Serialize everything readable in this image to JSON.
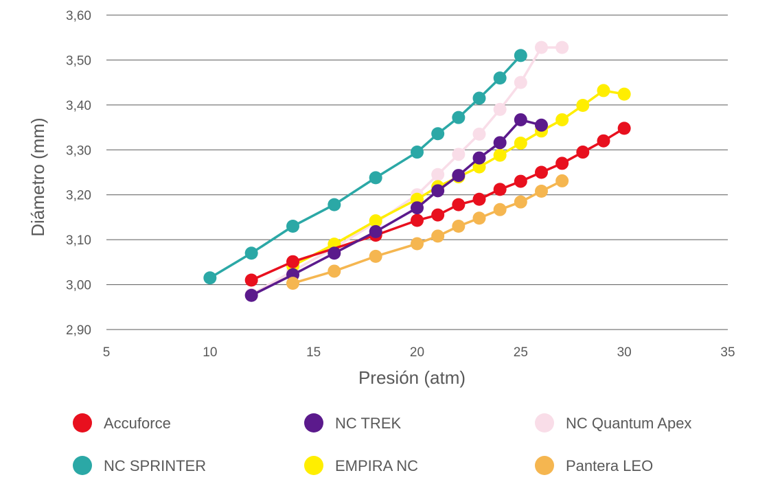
{
  "chart_data": {
    "type": "scatter",
    "mode": "lines+markers",
    "xlabel": "Presión (atm)",
    "ylabel": "Diámetro (mm)",
    "xlim": [
      5,
      35
    ],
    "ylim": [
      2.9,
      3.6
    ],
    "x_ticks": [
      "5",
      "10",
      "15",
      "20",
      "25",
      "30",
      "35"
    ],
    "y_ticks": [
      "2,90",
      "3,00",
      "3,10",
      "3,20",
      "3,30",
      "3,40",
      "3,50",
      "3,60"
    ],
    "x_tick_values": [
      5,
      10,
      15,
      20,
      25,
      30,
      35
    ],
    "y_tick_values": [
      2.9,
      3.0,
      3.1,
      3.2,
      3.3,
      3.4,
      3.5,
      3.6
    ],
    "grid": "horizontal",
    "legend_position": "bottom",
    "series": [
      {
        "name": "NC SPRINTER",
        "color": "#2BA8A6",
        "x": [
          10,
          12,
          14,
          16,
          18,
          20,
          21,
          22,
          23,
          24,
          25
        ],
        "y": [
          3.015,
          3.07,
          3.13,
          3.178,
          3.238,
          3.295,
          3.336,
          3.372,
          3.415,
          3.46,
          3.51
        ]
      },
      {
        "name": "NC Quantum Apex",
        "color": "#F9DDE8",
        "x": [
          12,
          14,
          16,
          18,
          20,
          21,
          22,
          23,
          24,
          25,
          26,
          27
        ],
        "y": [
          2.978,
          3.03,
          3.082,
          3.138,
          3.2,
          3.245,
          3.29,
          3.335,
          3.39,
          3.45,
          3.528,
          3.528
        ]
      },
      {
        "name": "EMPIRA NC",
        "color": "#FFEE00",
        "x": [
          14,
          16,
          18,
          20,
          21,
          22,
          23,
          24,
          25,
          26,
          27,
          28,
          29,
          30
        ],
        "y": [
          3.042,
          3.09,
          3.142,
          3.19,
          3.218,
          3.24,
          3.262,
          3.288,
          3.315,
          3.342,
          3.367,
          3.399,
          3.432,
          3.424
        ]
      },
      {
        "name": "Accuforce",
        "color": "#E8101E",
        "x": [
          12,
          14,
          18,
          20,
          21,
          22,
          23,
          24,
          25,
          26,
          27,
          28,
          29,
          30
        ],
        "y": [
          3.01,
          3.051,
          3.11,
          3.143,
          3.155,
          3.178,
          3.19,
          3.212,
          3.23,
          3.25,
          3.27,
          3.295,
          3.32,
          3.348
        ]
      },
      {
        "name": "NC TREK",
        "color": "#5B1A8C",
        "x": [
          12,
          14,
          16,
          18,
          20,
          21,
          22,
          23,
          24,
          25,
          26
        ],
        "y": [
          2.976,
          3.022,
          3.07,
          3.118,
          3.171,
          3.209,
          3.243,
          3.282,
          3.316,
          3.367,
          3.355
        ]
      },
      {
        "name": "Pantera LEO",
        "color": "#F5B650",
        "x": [
          14,
          16,
          18,
          20,
          21,
          22,
          23,
          24,
          25,
          26,
          27
        ],
        "y": [
          3.003,
          3.03,
          3.063,
          3.091,
          3.108,
          3.13,
          3.148,
          3.167,
          3.184,
          3.208,
          3.231
        ]
      }
    ],
    "legend_order": [
      "Accuforce",
      "NC TREK",
      "NC Quantum Apex",
      "NC SPRINTER",
      "EMPIRA NC",
      "Pantera LEO"
    ]
  }
}
